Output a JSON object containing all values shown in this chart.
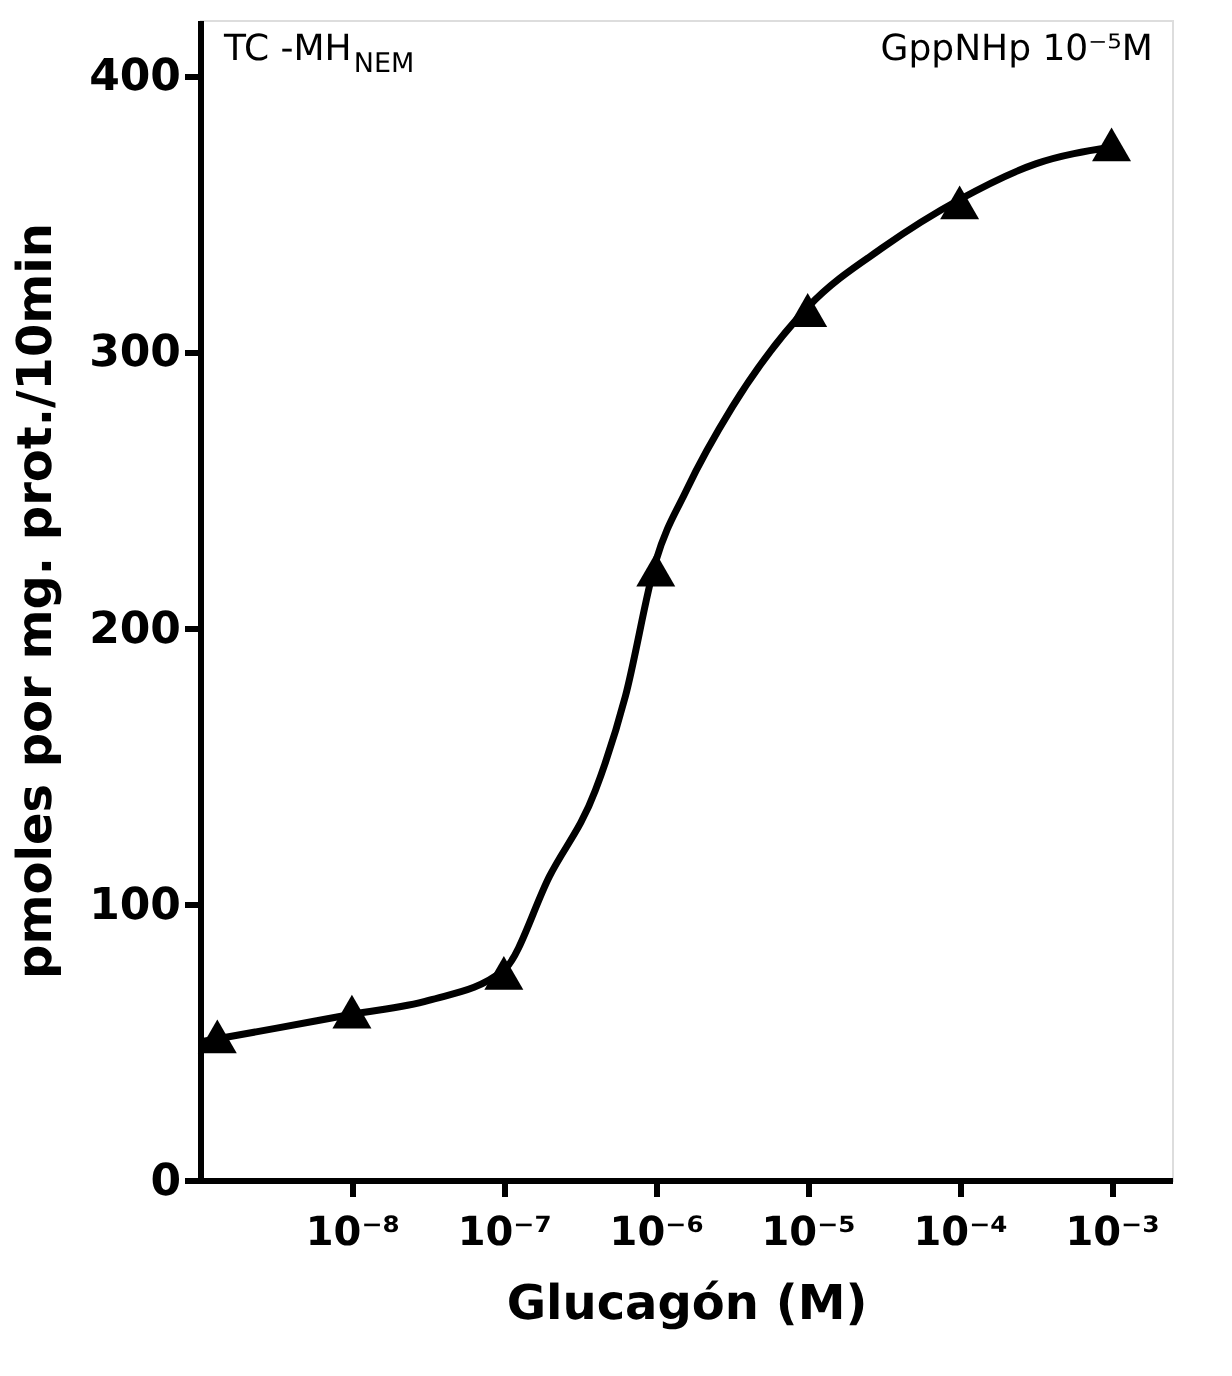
{
  "chart_data": {
    "type": "scatter",
    "xlabel": "Glucagón (M)",
    "ylabel": "pmoles por mg. prot./10min",
    "annotations": [
      "TC -MH$_{NEM}$",
      "GppNHp 10⁻⁵M"
    ],
    "log": "x",
    "xlim": [
      1e-09,
      0.0025
    ],
    "ylim": [
      0,
      420
    ],
    "xticks": [
      {
        "value": 1e-08,
        "label": "10⁻⁸"
      },
      {
        "value": 1e-07,
        "label": "10⁻⁷"
      },
      {
        "value": 1e-06,
        "label": "10⁻⁶"
      },
      {
        "value": 1e-05,
        "label": "10⁻⁵"
      },
      {
        "value": 0.0001,
        "label": "10⁻⁴"
      },
      {
        "value": 0.001,
        "label": "10⁻³"
      }
    ],
    "yticks": [
      0,
      100,
      200,
      300,
      400
    ],
    "grid": false,
    "series": [
      {
        "type": "line",
        "color": "#000000",
        "marker": "none",
        "line_style": "solid",
        "x": [
          1e-09,
          3.2e-09,
          1e-08,
          3.2e-08,
          1e-07,
          2e-07,
          4e-07,
          6.3e-07,
          1e-06,
          1.6e-06,
          3.2e-06,
          1e-05,
          3.2e-05,
          0.0001,
          0.00032,
          0.001
        ],
        "values": [
          50,
          55,
          60,
          65,
          76,
          110,
          141,
          175,
          224,
          250,
          280,
          316,
          338,
          355,
          368,
          374
        ]
      },
      {
        "color": "#000000",
        "marker": "triangle",
        "x": [
          1.3e-09,
          1e-08,
          1e-07,
          1e-06,
          1e-05,
          0.0001,
          0.001
        ],
        "values": [
          52,
          61,
          75,
          221,
          315,
          354,
          375
        ]
      }
    ]
  }
}
